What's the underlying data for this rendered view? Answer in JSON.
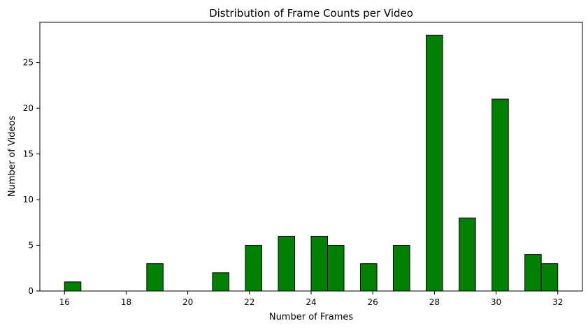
{
  "chart_data": {
    "type": "bar",
    "title": "Distribution of Frame Counts per Video",
    "xlabel": "Number of Frames",
    "ylabel": "Number of Videos",
    "xlim": [
      15.2,
      32.8
    ],
    "ylim": [
      0,
      29.4
    ],
    "xticks": [
      16,
      18,
      20,
      22,
      24,
      26,
      28,
      30,
      32
    ],
    "yticks": [
      0,
      5,
      10,
      15,
      20,
      25
    ],
    "bin_width": 0.533,
    "bars": [
      {
        "x_start": 16.0,
        "value": 1
      },
      {
        "x_start": 18.667,
        "value": 3
      },
      {
        "x_start": 20.8,
        "value": 2
      },
      {
        "x_start": 21.867,
        "value": 5
      },
      {
        "x_start": 22.933,
        "value": 6
      },
      {
        "x_start": 24.0,
        "value": 6
      },
      {
        "x_start": 24.533,
        "value": 5
      },
      {
        "x_start": 25.6,
        "value": 3
      },
      {
        "x_start": 26.667,
        "value": 5
      },
      {
        "x_start": 27.733,
        "value": 28
      },
      {
        "x_start": 28.8,
        "value": 8
      },
      {
        "x_start": 29.867,
        "value": 21
      },
      {
        "x_start": 30.933,
        "value": 4
      },
      {
        "x_start": 31.467,
        "value": 3
      }
    ],
    "colors": {
      "bar_fill": "#008000",
      "bar_edge": "#000000"
    },
    "grid": false,
    "legend": "none"
  }
}
